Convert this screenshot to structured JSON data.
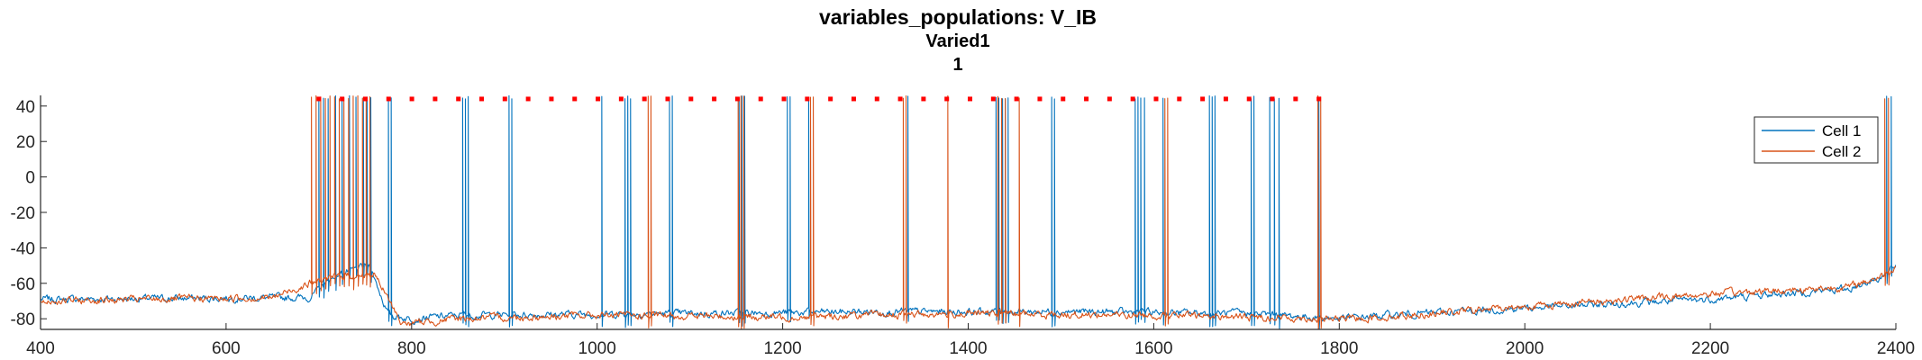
{
  "chart_data": {
    "type": "line",
    "title": "variables_populations: V_IB",
    "subtitle": "Varied1",
    "subtitle2": "1",
    "xlabel": "",
    "ylabel": "",
    "xlim": [
      400,
      2400
    ],
    "ylim": [
      -86,
      46
    ],
    "x_ticks": [
      400,
      600,
      800,
      1000,
      1200,
      1400,
      1600,
      1800,
      2000,
      2200,
      2400
    ],
    "y_ticks": [
      -80,
      -60,
      -40,
      -20,
      0,
      20,
      40
    ],
    "grid": false,
    "legend_position": "top-right",
    "colors": {
      "cell1": "#0072BD",
      "cell2": "#D95319",
      "marker": "#FF0000",
      "axis": "#262626"
    },
    "series": [
      {
        "name": "Cell 1",
        "color": "#0072BD",
        "baseline": [
          [
            400,
            -69
          ],
          [
            690,
            -68
          ],
          [
            720,
            -55
          ],
          [
            755,
            -50
          ],
          [
            775,
            -78
          ],
          [
            800,
            -80
          ],
          [
            850,
            -78
          ],
          [
            1100,
            -77
          ],
          [
            1300,
            -76
          ],
          [
            1500,
            -76
          ],
          [
            1700,
            -77
          ],
          [
            1800,
            -80
          ],
          [
            1850,
            -78
          ],
          [
            2000,
            -74
          ],
          [
            2200,
            -69
          ],
          [
            2350,
            -63
          ],
          [
            2390,
            -55
          ],
          [
            2400,
            -50
          ]
        ],
        "spikes": [
          700,
          705,
          710,
          718,
          725,
          733,
          740,
          748,
          752,
          756,
          775,
          778,
          855,
          858,
          861,
          905,
          908,
          1005,
          1030,
          1033,
          1036,
          1078,
          1081,
          1153,
          1156,
          1159,
          1205,
          1208,
          1228,
          1335,
          1430,
          1433,
          1437,
          1440,
          1443,
          1490,
          1493,
          1580,
          1583,
          1586,
          1590,
          1610,
          1660,
          1663,
          1666,
          1705,
          1708,
          1725,
          1730,
          1735,
          1778,
          2390,
          2395
        ]
      },
      {
        "name": "Cell 2",
        "color": "#D95319",
        "baseline": [
          [
            400,
            -70
          ],
          [
            650,
            -68
          ],
          [
            690,
            -60
          ],
          [
            720,
            -56
          ],
          [
            760,
            -55
          ],
          [
            790,
            -83
          ],
          [
            850,
            -80
          ],
          [
            1000,
            -78
          ],
          [
            1200,
            -79
          ],
          [
            1400,
            -77
          ],
          [
            1600,
            -78
          ],
          [
            1800,
            -80
          ],
          [
            1850,
            -79
          ],
          [
            2000,
            -73
          ],
          [
            2200,
            -66
          ],
          [
            2350,
            -62
          ],
          [
            2390,
            -55
          ],
          [
            2400,
            -50
          ]
        ],
        "spikes": [
          692,
          697,
          702,
          707,
          712,
          717,
          722,
          727,
          732,
          737,
          742,
          747,
          751,
          755,
          1055,
          1058,
          1152,
          1155,
          1158,
          1230,
          1233,
          1330,
          1333,
          1378,
          1432,
          1436,
          1440,
          1455,
          1612,
          1615,
          1777,
          1780,
          2388,
          2392
        ]
      }
    ],
    "dots": {
      "y": 44,
      "x_start": 700,
      "x_end": 1778,
      "count": 44,
      "color": "#FF0000"
    }
  }
}
